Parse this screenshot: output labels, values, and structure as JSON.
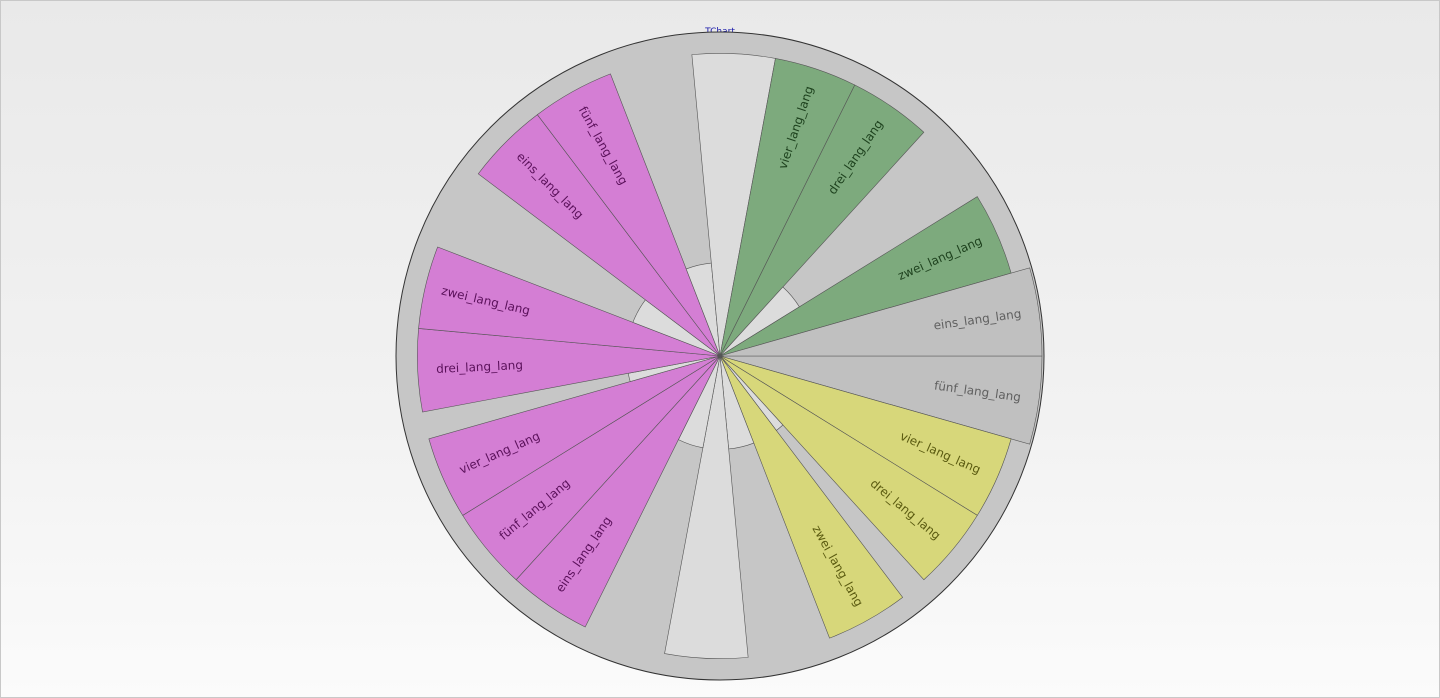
{
  "title": "TChart",
  "chart_data": {
    "type": "pie",
    "title": "TChart",
    "grid": false,
    "legend": "none",
    "start_angle_deg": 0,
    "direction": "clockwise",
    "groups": [
      {
        "color": "#d7d77a",
        "label_color": "#5a5a10"
      },
      {
        "color": "#d47ed4",
        "label_color": "#5a105a"
      },
      {
        "color": "#7daa7d",
        "label_color": "#1e421e"
      },
      {
        "color": "#c0c0c0",
        "label_color": "#606060"
      }
    ],
    "slices": [
      {
        "label": "fünf_lang_lang",
        "value": 7.0,
        "radius": 1.0,
        "group": 3
      },
      {
        "label": "vier_lang_lang",
        "value": 7.0,
        "radius": 0.94,
        "group": 0
      },
      {
        "label": "drei_lang_lang",
        "value": 7.0,
        "radius": 0.94,
        "group": 0
      },
      {
        "label": "",
        "value": 2.3,
        "radius": 0.29,
        "group": 0
      },
      {
        "label": "zwei_lang_lang",
        "value": 7.0,
        "radius": 0.94,
        "group": 0
      },
      {
        "label": "",
        "value": 7.0,
        "radius": 0.29,
        "group": 0
      },
      {
        "label": "",
        "value": 7.0,
        "radius": 0.94,
        "group": 0
      },
      {
        "label": "",
        "value": 7.0,
        "radius": 0.29,
        "group": 1
      },
      {
        "label": "eins_lang_lang",
        "value": 7.0,
        "radius": 0.94,
        "group": 1
      },
      {
        "label": "fünf_lang_lang",
        "value": 7.0,
        "radius": 0.94,
        "group": 1
      },
      {
        "label": "vier_lang_lang",
        "value": 7.0,
        "radius": 0.94,
        "group": 1
      },
      {
        "label": "",
        "value": 2.3,
        "radius": 0.29,
        "group": 1
      },
      {
        "label": "drei_lang_lang",
        "value": 7.0,
        "radius": 0.94,
        "group": 1
      },
      {
        "label": "zwei_lang_lang",
        "value": 7.0,
        "radius": 0.94,
        "group": 1
      },
      {
        "label": "",
        "value": 7.0,
        "radius": 0.29,
        "group": 1
      },
      {
        "label": "eins_lang_lang",
        "value": 7.0,
        "radius": 0.94,
        "group": 1
      },
      {
        "label": "fünf_lang_lang",
        "value": 7.0,
        "radius": 0.94,
        "group": 1
      },
      {
        "label": "",
        "value": 7.0,
        "radius": 0.29,
        "group": 3
      },
      {
        "label": "",
        "value": 7.0,
        "radius": 0.94,
        "group": 3
      },
      {
        "label": "vier_lang_lang",
        "value": 7.0,
        "radius": 0.94,
        "group": 2
      },
      {
        "label": "drei_lang_lang",
        "value": 7.0,
        "radius": 0.94,
        "group": 2
      },
      {
        "label": "",
        "value": 7.0,
        "radius": 0.29,
        "group": 2
      },
      {
        "label": "zwei_lang_lang",
        "value": 7.0,
        "radius": 0.94,
        "group": 2
      },
      {
        "label": "eins_lang_lang",
        "value": 7.0,
        "radius": 1.0,
        "group": 3
      }
    ]
  }
}
